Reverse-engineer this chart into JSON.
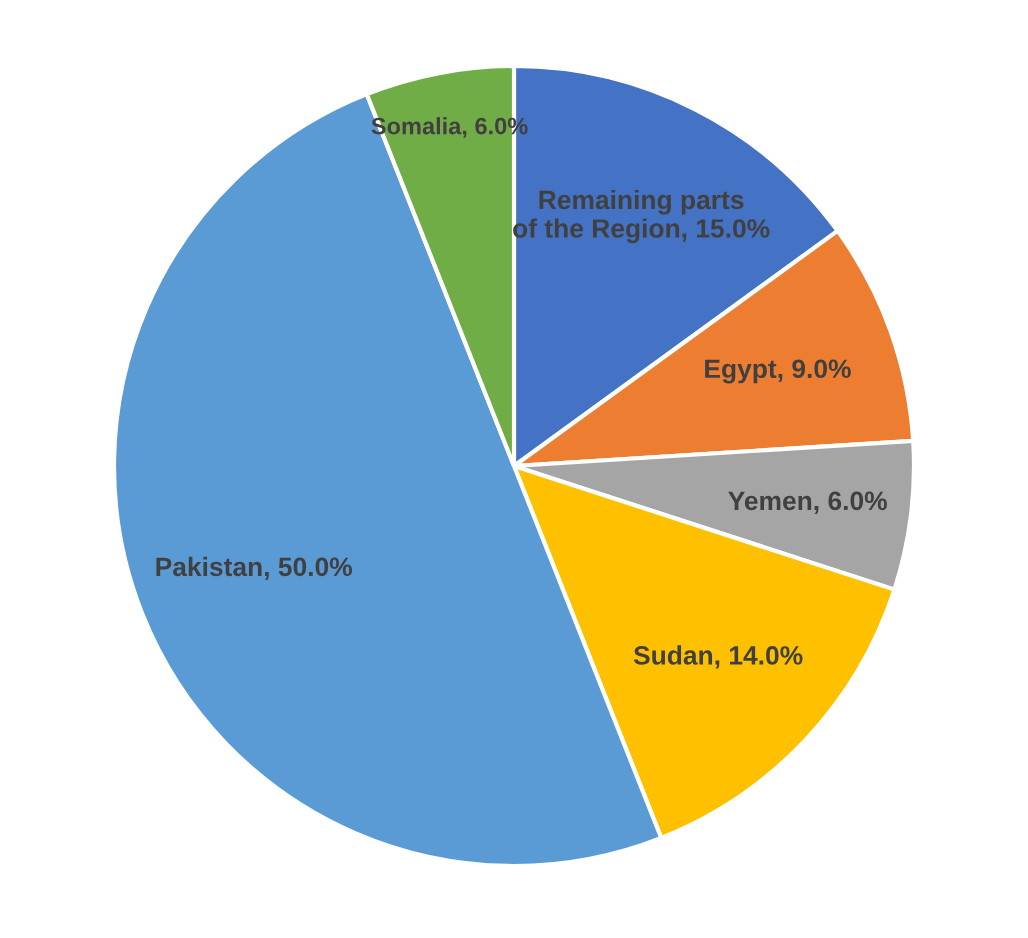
{
  "chart_data": {
    "type": "pie",
    "categories": [
      "Remaining parts\nof the Region",
      "Egypt",
      "Yemen",
      "Sudan",
      "Pakistan",
      "Somalia"
    ],
    "values": [
      15,
      9,
      6,
      14,
      50,
      6
    ],
    "value_labels": [
      "15.0%",
      "9.0%",
      "6.0%",
      "14.0%",
      "50.0%",
      "6.0%"
    ],
    "colors": [
      "#4472c4",
      "#ed7d31",
      "#a5a5a5",
      "#ffc000",
      "#5b9bd5",
      "#70ad47"
    ],
    "legend": false
  }
}
